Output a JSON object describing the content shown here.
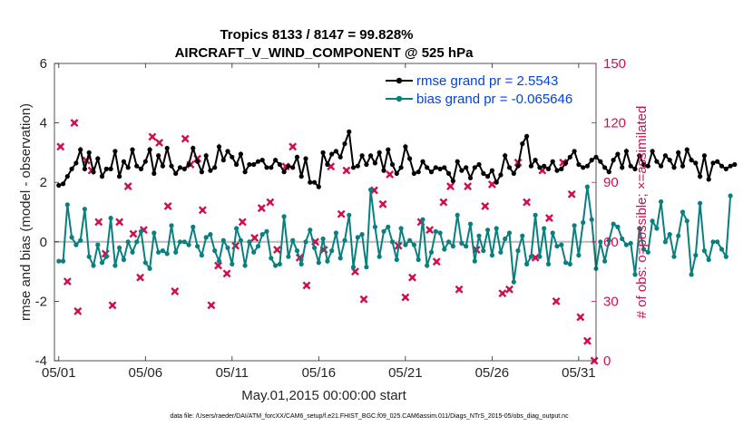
{
  "chart_data": {
    "type": "line",
    "title": "Tropics 8133 / 8147 = 99.828%",
    "subtitle": "AIRCRAFT_V_WIND_COMPONENT @ 525 hPa",
    "xlabel": "May.01,2015 00:00:00 start",
    "ylabel": "rmse and bias (model - observation)",
    "y2label": "# of obs: o=possible; ×=assimilated",
    "footnote": "data file: /Users/raeder/DAI/ATM_forcXX/CAM6_setup/f.e21.FHIST_BGC.f09_025.CAM6assim.011/Diags_NTrS_2015-05/obs_diag_output.nc",
    "xlim": [
      0.75,
      32
    ],
    "ylim": [
      -4,
      6
    ],
    "y2lim": [
      0,
      150
    ],
    "x_tick_values": [
      1,
      6,
      11,
      16,
      21,
      26,
      31
    ],
    "x_tick_labels": [
      "05/01",
      "05/06",
      "05/11",
      "05/16",
      "05/21",
      "05/26",
      "05/31"
    ],
    "y_ticks": [
      "-4",
      "-2",
      "0",
      "2",
      "4",
      "6"
    ],
    "y_tick_values": [
      -4,
      -2,
      0,
      2,
      4,
      6
    ],
    "y2_ticks": [
      "0",
      "30",
      "60",
      "90",
      "120",
      "150"
    ],
    "y2_tick_values": [
      0,
      30,
      60,
      90,
      120,
      150
    ],
    "x_start": 1,
    "x_step": 0.25,
    "series": [
      {
        "name": "rmse grand pr = 2.5543",
        "color": "#000000",
        "axis": "left",
        "values": [
          1.9,
          1.95,
          2.2,
          2.45,
          2.65,
          3.1,
          2.45,
          3.0,
          2.35,
          2.8,
          2.2,
          2.45,
          2.45,
          3.05,
          2.2,
          2.7,
          2.5,
          3.1,
          2.55,
          2.45,
          2.7,
          3.1,
          2.3,
          2.9,
          2.55,
          3.15,
          2.55,
          2.3,
          2.5,
          2.45,
          2.6,
          3.15,
          2.7,
          2.35,
          2.9,
          2.4,
          2.5,
          3.2,
          2.75,
          3.05,
          2.85,
          2.6,
          2.95,
          2.35,
          2.6,
          2.6,
          2.7,
          2.75,
          2.5,
          2.5,
          2.75,
          2.6,
          2.35,
          2.55,
          2.5,
          2.85,
          2.2,
          2.8,
          2.0,
          2.0,
          1.85,
          3.0,
          2.6,
          2.95,
          3.05,
          2.85,
          3.3,
          3.7,
          2.5,
          2.55,
          2.9,
          2.6,
          2.9,
          2.65,
          3.0,
          2.4,
          3.1,
          2.6,
          2.3,
          2.5,
          3.2,
          2.8,
          2.3,
          2.35,
          2.7,
          2.5,
          2.35,
          2.5,
          2.45,
          2.5,
          2.3,
          2.05,
          2.7,
          2.4,
          2.5,
          2.15,
          2.5,
          2.6,
          2.3,
          2.2,
          2.4,
          2.0,
          2.25,
          2.9,
          2.5,
          2.3,
          2.55,
          3.3,
          3.55,
          2.55,
          2.75,
          2.5,
          2.55,
          2.45,
          2.7,
          2.4,
          2.45,
          2.65,
          2.85,
          3.05,
          2.6,
          2.5,
          2.55,
          2.75,
          2.85,
          2.7,
          2.5,
          2.35,
          2.75,
          2.95,
          2.5,
          3.05,
          2.55,
          2.45,
          2.9,
          2.6,
          2.55,
          3.05,
          2.7,
          2.55,
          2.9,
          2.75,
          2.5,
          3.0,
          2.55,
          3.1,
          2.75,
          2.65,
          2.2,
          2.9,
          2.1,
          2.65,
          2.7,
          2.55,
          2.45,
          2.55,
          2.6
        ]
      },
      {
        "name": "bias grand pr = -0.065646",
        "color": "#0a7f7f",
        "axis": "left",
        "values": [
          -0.65,
          -0.65,
          1.25,
          0.15,
          -0.1,
          0.05,
          1.1,
          -0.5,
          -0.8,
          -0.1,
          -0.7,
          -0.5,
          0.8,
          -0.8,
          -0.2,
          -0.6,
          0.0,
          -0.35,
          0.0,
          0.35,
          -0.7,
          -0.9,
          0.3,
          -0.35,
          -0.3,
          -0.4,
          0.55,
          -0.35,
          0.0,
          0.0,
          -0.1,
          0.5,
          -0.15,
          -0.45,
          0.15,
          0.25,
          -0.3,
          -0.65,
          0.05,
          -0.2,
          -0.75,
          0.45,
          0.05,
          -0.8,
          0.0,
          -0.35,
          -0.15,
          0.25,
          0.35,
          -0.55,
          -0.8,
          -0.75,
          0.85,
          -0.5,
          0.05,
          -0.3,
          -0.75,
          0.0,
          0.4,
          -0.2,
          -0.7,
          0.1,
          -0.65,
          -0.3,
          0.3,
          -0.55,
          0.05,
          0.9,
          -0.85,
          0.15,
          0.25,
          -0.85,
          1.75,
          0.5,
          -0.5,
          0.35,
          0.5,
          0.0,
          -0.6,
          0.45,
          -0.1,
          0.05,
          -0.1,
          -0.6,
          0.75,
          -0.8,
          -0.35,
          0.35,
          0.3,
          -0.25,
          0.0,
          -0.15,
          0.9,
          -0.05,
          -0.15,
          0.6,
          -0.65,
          0.2,
          -0.3,
          0.4,
          -0.45,
          0.45,
          -0.35,
          0.1,
          0.3,
          -1.35,
          -0.3,
          0.2,
          -0.75,
          -0.5,
          0.9,
          -0.5,
          0.45,
          -0.75,
          0.3,
          -0.15,
          -0.1,
          -0.7,
          -0.75,
          0.55,
          -0.45,
          0.65,
          1.85,
          0.75,
          -0.9,
          0.0,
          -0.65,
          0.05,
          0.6,
          0.5,
          0.1,
          -0.1,
          -0.05,
          -1.1,
          0.45,
          -0.25,
          -0.35,
          0.7,
          0.45,
          1.35,
          0.0,
          0.25,
          -0.5,
          0.2,
          1.0,
          0.7,
          -1.1,
          -0.45,
          1.3,
          -0.3,
          -0.6,
          0.0,
          0.0,
          -0.25,
          -0.5,
          1.55
        ]
      }
    ],
    "obs_count_assimilated": {
      "name": "# of obs assimilated",
      "color": "#d0104c",
      "axis": "right",
      "x": [
        1.1,
        1.5,
        1.9,
        2.1,
        2.6,
        2.9,
        3.3,
        3.7,
        4.1,
        4.5,
        5.0,
        5.3,
        5.7,
        5.9,
        6.4,
        6.8,
        7.3,
        7.7,
        8.3,
        8.6,
        9.0,
        9.3,
        9.8,
        10.2,
        10.7,
        11.2,
        11.6,
        12.3,
        12.7,
        13.2,
        13.6,
        14.1,
        14.5,
        14.9,
        15.3,
        15.8,
        16.3,
        16.7,
        17.3,
        17.6,
        18.1,
        18.6,
        19.2,
        19.7,
        20.1,
        20.6,
        21.0,
        21.4,
        21.9,
        22.4,
        22.8,
        23.2,
        23.6,
        24.1,
        24.6,
        25.1,
        25.6,
        26.0,
        26.6,
        27.0,
        27.5,
        28.0,
        28.5,
        28.9,
        29.3,
        29.7,
        30.1,
        30.6,
        31.1,
        31.5,
        31.9
      ]
    },
    "x_axis_line_y": 0,
    "legend_location": "top-right"
  }
}
